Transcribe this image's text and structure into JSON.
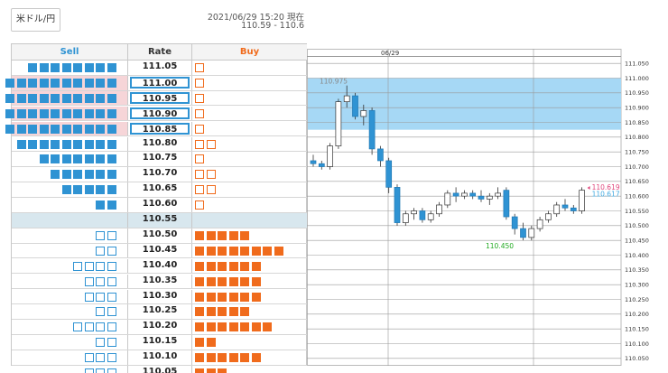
{
  "pair_button": {
    "label": "米ドル/円"
  },
  "info": {
    "timestamp": "2021/06/29 15:20 現在",
    "range": "110.59 - 110.6"
  },
  "ladder": {
    "headers": {
      "sell": "Sell",
      "rate": "Rate",
      "buy": "Buy"
    },
    "current_rate": "110.55",
    "rows": [
      {
        "rate": "111.05",
        "sell_filled": 8,
        "sell_empty": 0,
        "buy_filled": 0,
        "buy_empty": 1,
        "boxed": false,
        "highlight": false
      },
      {
        "rate": "111.00",
        "sell_filled": 10,
        "sell_empty": 0,
        "buy_filled": 0,
        "buy_empty": 1,
        "boxed": true,
        "highlight": true
      },
      {
        "rate": "110.95",
        "sell_filled": 10,
        "sell_empty": 0,
        "buy_filled": 0,
        "buy_empty": 1,
        "boxed": true,
        "highlight": true
      },
      {
        "rate": "110.90",
        "sell_filled": 10,
        "sell_empty": 0,
        "buy_filled": 0,
        "buy_empty": 1,
        "boxed": true,
        "highlight": true
      },
      {
        "rate": "110.85",
        "sell_filled": 10,
        "sell_empty": 0,
        "buy_filled": 0,
        "buy_empty": 1,
        "boxed": true,
        "highlight": true
      },
      {
        "rate": "110.80",
        "sell_filled": 9,
        "sell_empty": 0,
        "buy_filled": 0,
        "buy_empty": 2,
        "boxed": false,
        "highlight": false
      },
      {
        "rate": "110.75",
        "sell_filled": 7,
        "sell_empty": 0,
        "buy_filled": 0,
        "buy_empty": 1,
        "boxed": false,
        "highlight": false
      },
      {
        "rate": "110.70",
        "sell_filled": 6,
        "sell_empty": 0,
        "buy_filled": 0,
        "buy_empty": 2,
        "boxed": false,
        "highlight": false
      },
      {
        "rate": "110.65",
        "sell_filled": 5,
        "sell_empty": 0,
        "buy_filled": 0,
        "buy_empty": 2,
        "boxed": false,
        "highlight": false
      },
      {
        "rate": "110.60",
        "sell_filled": 2,
        "sell_empty": 0,
        "buy_filled": 0,
        "buy_empty": 1,
        "boxed": false,
        "highlight": false
      },
      {
        "rate": "110.55",
        "sell_filled": 0,
        "sell_empty": 0,
        "buy_filled": 0,
        "buy_empty": 0,
        "boxed": false,
        "highlight": false,
        "current": true
      },
      {
        "rate": "110.50",
        "sell_filled": 0,
        "sell_empty": 2,
        "buy_filled": 5,
        "buy_empty": 0,
        "boxed": false,
        "highlight": false
      },
      {
        "rate": "110.45",
        "sell_filled": 0,
        "sell_empty": 2,
        "buy_filled": 8,
        "buy_empty": 0,
        "boxed": false,
        "highlight": false
      },
      {
        "rate": "110.40",
        "sell_filled": 0,
        "sell_empty": 4,
        "buy_filled": 6,
        "buy_empty": 0,
        "boxed": false,
        "highlight": false
      },
      {
        "rate": "110.35",
        "sell_filled": 0,
        "sell_empty": 3,
        "buy_filled": 6,
        "buy_empty": 0,
        "boxed": false,
        "highlight": false
      },
      {
        "rate": "110.30",
        "sell_filled": 0,
        "sell_empty": 3,
        "buy_filled": 6,
        "buy_empty": 0,
        "boxed": false,
        "highlight": false
      },
      {
        "rate": "110.25",
        "sell_filled": 0,
        "sell_empty": 2,
        "buy_filled": 5,
        "buy_empty": 0,
        "boxed": false,
        "highlight": false
      },
      {
        "rate": "110.20",
        "sell_filled": 0,
        "sell_empty": 4,
        "buy_filled": 7,
        "buy_empty": 0,
        "boxed": false,
        "highlight": false
      },
      {
        "rate": "110.15",
        "sell_filled": 0,
        "sell_empty": 2,
        "buy_filled": 2,
        "buy_empty": 0,
        "boxed": false,
        "highlight": false
      },
      {
        "rate": "110.10",
        "sell_filled": 0,
        "sell_empty": 3,
        "buy_filled": 6,
        "buy_empty": 0,
        "boxed": false,
        "highlight": false
      },
      {
        "rate": "110.05",
        "sell_filled": 0,
        "sell_empty": 3,
        "buy_filled": 3,
        "buy_empty": 0,
        "boxed": false,
        "highlight": false
      }
    ]
  },
  "chart_data": {
    "type": "candlestick",
    "x_tick_label": "06/29",
    "ylim": [
      110.025,
      111.075
    ],
    "y_ticks": [
      "111.050",
      "111.000",
      "110.950",
      "110.900",
      "110.850",
      "110.800",
      "110.750",
      "110.700",
      "110.650",
      "110.600",
      "110.550",
      "110.500",
      "110.450",
      "110.400",
      "110.350",
      "110.300",
      "110.250",
      "110.200",
      "110.150",
      "110.100",
      "110.050"
    ],
    "highlight_band": [
      110.825,
      111.0
    ],
    "labels": {
      "high": "110.975",
      "low": "110.450",
      "ask": "110.619",
      "bid": "110.617"
    },
    "high_value": 110.975,
    "low_value": 110.45,
    "ask_value": 110.619,
    "bid_value": 110.617,
    "colors": {
      "up": "#ffffff",
      "down": "#2f93d3",
      "band": "#a6d8f5",
      "high_label": "#888888",
      "low_label": "#22aa22",
      "ask_label": "#e0457b",
      "bid_label": "#3fa9e0"
    },
    "candles": [
      {
        "o": 110.72,
        "h": 110.74,
        "l": 110.7,
        "c": 110.71
      },
      {
        "o": 110.71,
        "h": 110.72,
        "l": 110.69,
        "c": 110.7
      },
      {
        "o": 110.7,
        "h": 110.78,
        "l": 110.69,
        "c": 110.77
      },
      {
        "o": 110.77,
        "h": 110.93,
        "l": 110.76,
        "c": 110.92
      },
      {
        "o": 110.92,
        "h": 110.975,
        "l": 110.9,
        "c": 110.94
      },
      {
        "o": 110.94,
        "h": 110.95,
        "l": 110.86,
        "c": 110.87
      },
      {
        "o": 110.87,
        "h": 110.91,
        "l": 110.84,
        "c": 110.89
      },
      {
        "o": 110.89,
        "h": 110.9,
        "l": 110.74,
        "c": 110.76
      },
      {
        "o": 110.76,
        "h": 110.77,
        "l": 110.7,
        "c": 110.72
      },
      {
        "o": 110.72,
        "h": 110.73,
        "l": 110.61,
        "c": 110.63
      },
      {
        "o": 110.63,
        "h": 110.64,
        "l": 110.5,
        "c": 110.51
      },
      {
        "o": 110.51,
        "h": 110.55,
        "l": 110.5,
        "c": 110.54
      },
      {
        "o": 110.54,
        "h": 110.56,
        "l": 110.52,
        "c": 110.55
      },
      {
        "o": 110.55,
        "h": 110.56,
        "l": 110.51,
        "c": 110.52
      },
      {
        "o": 110.52,
        "h": 110.55,
        "l": 110.51,
        "c": 110.54
      },
      {
        "o": 110.54,
        "h": 110.58,
        "l": 110.53,
        "c": 110.57
      },
      {
        "o": 110.57,
        "h": 110.62,
        "l": 110.56,
        "c": 110.61
      },
      {
        "o": 110.61,
        "h": 110.63,
        "l": 110.58,
        "c": 110.6
      },
      {
        "o": 110.6,
        "h": 110.62,
        "l": 110.59,
        "c": 110.61
      },
      {
        "o": 110.61,
        "h": 110.62,
        "l": 110.59,
        "c": 110.6
      },
      {
        "o": 110.6,
        "h": 110.62,
        "l": 110.58,
        "c": 110.59
      },
      {
        "o": 110.59,
        "h": 110.61,
        "l": 110.57,
        "c": 110.6
      },
      {
        "o": 110.6,
        "h": 110.63,
        "l": 110.59,
        "c": 110.61
      },
      {
        "o": 110.62,
        "h": 110.63,
        "l": 110.52,
        "c": 110.53
      },
      {
        "o": 110.53,
        "h": 110.54,
        "l": 110.47,
        "c": 110.49
      },
      {
        "o": 110.49,
        "h": 110.51,
        "l": 110.45,
        "c": 110.46
      },
      {
        "o": 110.46,
        "h": 110.5,
        "l": 110.45,
        "c": 110.49
      },
      {
        "o": 110.49,
        "h": 110.53,
        "l": 110.48,
        "c": 110.52
      },
      {
        "o": 110.52,
        "h": 110.55,
        "l": 110.51,
        "c": 110.54
      },
      {
        "o": 110.54,
        "h": 110.58,
        "l": 110.53,
        "c": 110.57
      },
      {
        "o": 110.57,
        "h": 110.59,
        "l": 110.55,
        "c": 110.56
      },
      {
        "o": 110.56,
        "h": 110.57,
        "l": 110.54,
        "c": 110.55
      },
      {
        "o": 110.55,
        "h": 110.63,
        "l": 110.54,
        "c": 110.62
      }
    ]
  }
}
